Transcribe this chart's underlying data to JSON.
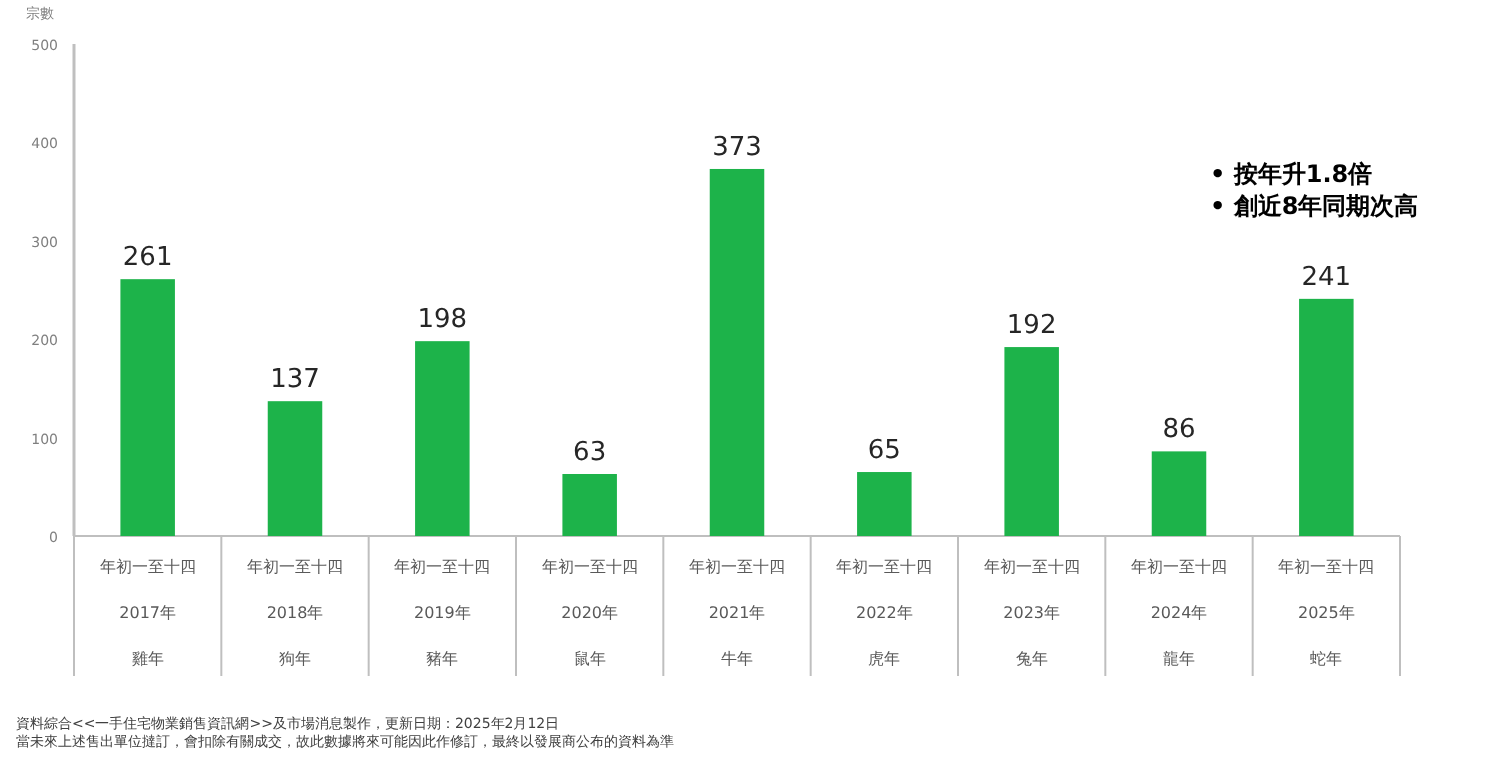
{
  "chart_data": {
    "type": "bar",
    "ylabel": "宗數",
    "categories": [
      "年初一至十四2017年雞年",
      "年初一至十四2018年狗年",
      "年初一至十四2019年豬年",
      "年初一至十四2020年鼠年",
      "年初一至十四2021年牛年",
      "年初一至十四2022年虎年",
      "年初一至十四2023年兔年",
      "年初一至十四2024年龍年",
      "年初一至十四2025年蛇年"
    ],
    "values": [
      261,
      137,
      198,
      63,
      373,
      65,
      192,
      86,
      241
    ],
    "color": "#1db34a",
    "ylim": [
      0,
      500
    ],
    "yticks": [
      0,
      100,
      200,
      300,
      400,
      500
    ],
    "data_labels": true,
    "annotations": [
      "•  按年升1.8倍",
      "•  創近8年同期次高",
      "資料綜合<<一手住宅物業銷售資訊網>>及市場消息製作，更新日期：2025年2月12日",
      "當未來上述售出單位撻訂，會扣除有關成交，故此數據將來可能因此作修訂，最終以發展商公布的資料為準"
    ]
  }
}
